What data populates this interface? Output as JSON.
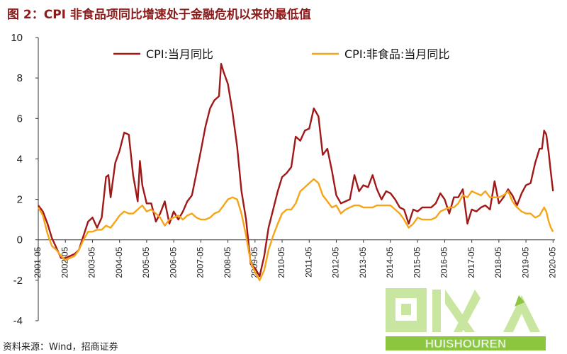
{
  "figure": {
    "title": "图 2：CPI 非食品项同比增速处于金融危机以来的最低值",
    "source": "资料来源：Wind，招商证券"
  },
  "watermark": {
    "text": "HUISHOUREN",
    "colors": {
      "main": "#c8e6a0",
      "accent": "#8cc63f"
    }
  },
  "chart_data": {
    "type": "line",
    "ylim": [
      -4,
      10
    ],
    "yticks": [
      -4,
      -2,
      0,
      2,
      4,
      6,
      8,
      10
    ],
    "xlim": [
      2001.33,
      2020.4
    ],
    "xticks": [
      "2001-05",
      "2002-05",
      "2003-05",
      "2004-05",
      "2005-05",
      "2006-05",
      "2007-05",
      "2008-05",
      "2009-05",
      "2010-05",
      "2011-05",
      "2012-05",
      "2013-05",
      "2014-05",
      "2015-05",
      "2016-05",
      "2017-05",
      "2018-05",
      "2019-05",
      "2020-05"
    ],
    "grid": false,
    "legend_position": "top",
    "series": [
      {
        "name": "CPI:当月同比",
        "color": "#A01818",
        "points": [
          [
            2001.33,
            1.7
          ],
          [
            2001.5,
            1.4
          ],
          [
            2001.67,
            0.8
          ],
          [
            2001.83,
            0.1
          ],
          [
            2002.0,
            -0.4
          ],
          [
            2002.17,
            -0.9
          ],
          [
            2002.33,
            -0.9
          ],
          [
            2002.5,
            -0.8
          ],
          [
            2002.67,
            -0.7
          ],
          [
            2002.83,
            -0.5
          ],
          [
            2003.0,
            0.2
          ],
          [
            2003.17,
            0.9
          ],
          [
            2003.33,
            1.1
          ],
          [
            2003.5,
            0.6
          ],
          [
            2003.67,
            1.1
          ],
          [
            2003.83,
            3.1
          ],
          [
            2003.92,
            3.2
          ],
          [
            2004.0,
            2.1
          ],
          [
            2004.17,
            3.8
          ],
          [
            2004.33,
            4.4
          ],
          [
            2004.5,
            5.3
          ],
          [
            2004.67,
            5.2
          ],
          [
            2004.83,
            3.2
          ],
          [
            2005.0,
            1.9
          ],
          [
            2005.08,
            3.9
          ],
          [
            2005.17,
            2.7
          ],
          [
            2005.33,
            1.8
          ],
          [
            2005.5,
            1.8
          ],
          [
            2005.67,
            0.9
          ],
          [
            2005.83,
            1.3
          ],
          [
            2006.0,
            1.9
          ],
          [
            2006.17,
            0.8
          ],
          [
            2006.33,
            1.4
          ],
          [
            2006.5,
            1.0
          ],
          [
            2006.67,
            1.4
          ],
          [
            2006.83,
            1.9
          ],
          [
            2007.0,
            2.2
          ],
          [
            2007.17,
            3.3
          ],
          [
            2007.33,
            4.4
          ],
          [
            2007.5,
            5.6
          ],
          [
            2007.67,
            6.5
          ],
          [
            2007.83,
            6.9
          ],
          [
            2008.0,
            7.1
          ],
          [
            2008.08,
            8.7
          ],
          [
            2008.17,
            8.3
          ],
          [
            2008.33,
            7.7
          ],
          [
            2008.5,
            6.3
          ],
          [
            2008.67,
            4.6
          ],
          [
            2008.83,
            2.4
          ],
          [
            2009.0,
            1.0
          ],
          [
            2009.17,
            -1.2
          ],
          [
            2009.33,
            -1.4
          ],
          [
            2009.5,
            -1.8
          ],
          [
            2009.67,
            -0.8
          ],
          [
            2009.83,
            0.6
          ],
          [
            2010.0,
            1.5
          ],
          [
            2010.17,
            2.4
          ],
          [
            2010.33,
            3.1
          ],
          [
            2010.5,
            3.3
          ],
          [
            2010.67,
            3.6
          ],
          [
            2010.83,
            5.1
          ],
          [
            2011.0,
            4.9
          ],
          [
            2011.17,
            5.4
          ],
          [
            2011.33,
            5.5
          ],
          [
            2011.5,
            6.5
          ],
          [
            2011.67,
            6.1
          ],
          [
            2011.83,
            4.2
          ],
          [
            2012.0,
            4.5
          ],
          [
            2012.17,
            3.4
          ],
          [
            2012.33,
            2.2
          ],
          [
            2012.5,
            1.8
          ],
          [
            2012.67,
            1.9
          ],
          [
            2012.83,
            2.0
          ],
          [
            2013.0,
            3.2
          ],
          [
            2013.17,
            2.4
          ],
          [
            2013.33,
            2.7
          ],
          [
            2013.5,
            2.6
          ],
          [
            2013.67,
            3.2
          ],
          [
            2013.83,
            2.5
          ],
          [
            2014.0,
            2.0
          ],
          [
            2014.17,
            2.4
          ],
          [
            2014.33,
            2.3
          ],
          [
            2014.5,
            2.0
          ],
          [
            2014.67,
            1.6
          ],
          [
            2014.83,
            1.5
          ],
          [
            2015.0,
            0.8
          ],
          [
            2015.17,
            1.5
          ],
          [
            2015.33,
            1.4
          ],
          [
            2015.5,
            1.6
          ],
          [
            2015.67,
            1.6
          ],
          [
            2015.83,
            1.6
          ],
          [
            2016.0,
            1.8
          ],
          [
            2016.17,
            2.3
          ],
          [
            2016.33,
            2.0
          ],
          [
            2016.5,
            1.3
          ],
          [
            2016.67,
            2.1
          ],
          [
            2016.83,
            2.1
          ],
          [
            2017.0,
            2.5
          ],
          [
            2017.17,
            0.8
          ],
          [
            2017.33,
            1.5
          ],
          [
            2017.5,
            1.4
          ],
          [
            2017.67,
            1.6
          ],
          [
            2017.83,
            1.7
          ],
          [
            2018.0,
            1.5
          ],
          [
            2018.17,
            2.9
          ],
          [
            2018.33,
            1.8
          ],
          [
            2018.5,
            2.1
          ],
          [
            2018.67,
            2.5
          ],
          [
            2018.83,
            2.2
          ],
          [
            2019.0,
            1.7
          ],
          [
            2019.17,
            2.3
          ],
          [
            2019.33,
            2.7
          ],
          [
            2019.5,
            2.8
          ],
          [
            2019.67,
            3.8
          ],
          [
            2019.83,
            4.5
          ],
          [
            2019.92,
            4.5
          ],
          [
            2020.0,
            5.4
          ],
          [
            2020.08,
            5.2
          ],
          [
            2020.17,
            4.3
          ],
          [
            2020.25,
            3.3
          ],
          [
            2020.33,
            2.4
          ]
        ]
      },
      {
        "name": "CPI:非食品:当月同比",
        "color": "#F5A516",
        "points": [
          [
            2001.33,
            1.6
          ],
          [
            2001.5,
            1.2
          ],
          [
            2001.67,
            0.3
          ],
          [
            2001.83,
            -0.3
          ],
          [
            2002.0,
            -0.5
          ],
          [
            2002.17,
            -0.8
          ],
          [
            2002.33,
            -1.0
          ],
          [
            2002.5,
            -0.9
          ],
          [
            2002.67,
            -0.8
          ],
          [
            2002.83,
            -0.5
          ],
          [
            2003.0,
            0.0
          ],
          [
            2003.17,
            0.4
          ],
          [
            2003.33,
            0.4
          ],
          [
            2003.5,
            0.5
          ],
          [
            2003.67,
            0.5
          ],
          [
            2003.83,
            0.7
          ],
          [
            2004.0,
            0.6
          ],
          [
            2004.17,
            0.9
          ],
          [
            2004.33,
            1.2
          ],
          [
            2004.5,
            1.4
          ],
          [
            2004.67,
            1.3
          ],
          [
            2004.83,
            1.3
          ],
          [
            2005.0,
            1.5
          ],
          [
            2005.17,
            1.7
          ],
          [
            2005.33,
            1.4
          ],
          [
            2005.5,
            1.5
          ],
          [
            2005.67,
            1.3
          ],
          [
            2005.83,
            1.1
          ],
          [
            2006.0,
            0.7
          ],
          [
            2006.17,
            1.0
          ],
          [
            2006.33,
            1.1
          ],
          [
            2006.5,
            1.2
          ],
          [
            2006.67,
            1.0
          ],
          [
            2006.83,
            1.2
          ],
          [
            2007.0,
            1.3
          ],
          [
            2007.17,
            1.1
          ],
          [
            2007.33,
            1.0
          ],
          [
            2007.5,
            1.0
          ],
          [
            2007.67,
            1.1
          ],
          [
            2007.83,
            1.3
          ],
          [
            2008.0,
            1.4
          ],
          [
            2008.17,
            1.7
          ],
          [
            2008.33,
            2.0
          ],
          [
            2008.5,
            2.1
          ],
          [
            2008.67,
            2.0
          ],
          [
            2008.83,
            1.3
          ],
          [
            2009.0,
            0.2
          ],
          [
            2009.17,
            -1.1
          ],
          [
            2009.33,
            -1.6
          ],
          [
            2009.5,
            -2.0
          ],
          [
            2009.67,
            -1.5
          ],
          [
            2009.83,
            -0.5
          ],
          [
            2010.0,
            0.2
          ],
          [
            2010.17,
            0.8
          ],
          [
            2010.33,
            1.3
          ],
          [
            2010.5,
            1.5
          ],
          [
            2010.67,
            1.5
          ],
          [
            2010.83,
            1.8
          ],
          [
            2011.0,
            2.4
          ],
          [
            2011.17,
            2.6
          ],
          [
            2011.33,
            2.8
          ],
          [
            2011.5,
            3.0
          ],
          [
            2011.67,
            2.8
          ],
          [
            2011.83,
            2.2
          ],
          [
            2012.0,
            1.9
          ],
          [
            2012.17,
            1.6
          ],
          [
            2012.33,
            1.7
          ],
          [
            2012.5,
            1.3
          ],
          [
            2012.67,
            1.5
          ],
          [
            2012.83,
            1.6
          ],
          [
            2013.0,
            1.7
          ],
          [
            2013.17,
            1.7
          ],
          [
            2013.33,
            1.6
          ],
          [
            2013.5,
            1.6
          ],
          [
            2013.67,
            1.6
          ],
          [
            2013.83,
            1.7
          ],
          [
            2014.0,
            1.7
          ],
          [
            2014.17,
            1.7
          ],
          [
            2014.33,
            1.7
          ],
          [
            2014.5,
            1.5
          ],
          [
            2014.67,
            1.3
          ],
          [
            2014.83,
            1.0
          ],
          [
            2015.0,
            0.6
          ],
          [
            2015.17,
            0.8
          ],
          [
            2015.33,
            1.1
          ],
          [
            2015.5,
            1.0
          ],
          [
            2015.67,
            1.0
          ],
          [
            2015.83,
            1.0
          ],
          [
            2016.0,
            1.1
          ],
          [
            2016.17,
            1.4
          ],
          [
            2016.33,
            1.5
          ],
          [
            2016.5,
            1.6
          ],
          [
            2016.67,
            1.6
          ],
          [
            2016.83,
            1.8
          ],
          [
            2017.0,
            2.2
          ],
          [
            2017.17,
            2.1
          ],
          [
            2017.33,
            2.4
          ],
          [
            2017.5,
            2.3
          ],
          [
            2017.67,
            2.2
          ],
          [
            2017.83,
            2.4
          ],
          [
            2018.0,
            2.1
          ],
          [
            2018.17,
            2.1
          ],
          [
            2018.33,
            2.1
          ],
          [
            2018.5,
            2.2
          ],
          [
            2018.67,
            2.4
          ],
          [
            2018.83,
            1.9
          ],
          [
            2019.0,
            1.6
          ],
          [
            2019.17,
            1.4
          ],
          [
            2019.33,
            1.3
          ],
          [
            2019.5,
            1.3
          ],
          [
            2019.67,
            1.1
          ],
          [
            2019.83,
            1.2
          ],
          [
            2020.0,
            1.6
          ],
          [
            2020.08,
            1.4
          ],
          [
            2020.17,
            0.9
          ],
          [
            2020.25,
            0.6
          ],
          [
            2020.33,
            0.4
          ]
        ]
      }
    ]
  }
}
